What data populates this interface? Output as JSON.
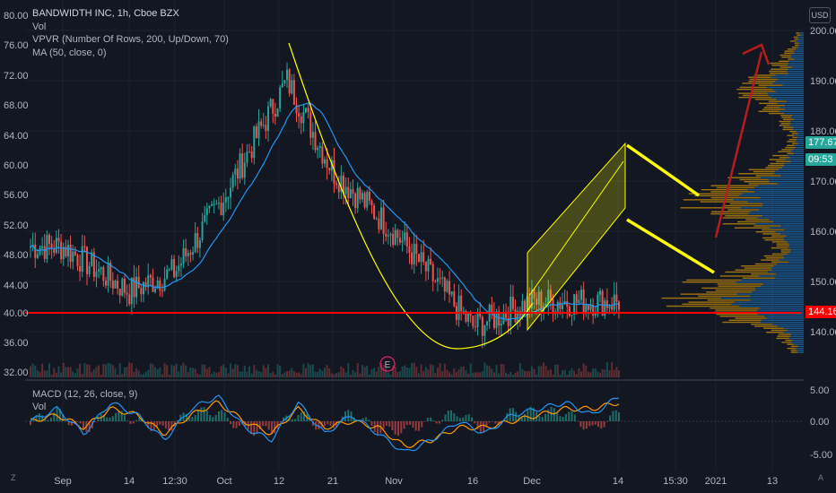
{
  "legend": {
    "title": "BANDWIDTH INC, 1h, Cboe BZX",
    "vol": "Vol",
    "vpvr": "VPVR (Number Of Rows, 200, Up/Down, 70)",
    "ma": "MA (50, close, 0)"
  },
  "macd_legend": {
    "macd": "MACD (12, 26, close, 9)",
    "vol": "Vol"
  },
  "currency_button": "USD",
  "price_tags": {
    "last_price": "177.67",
    "countdown": "09:53",
    "support": "144.16"
  },
  "corner_labels": {
    "left": "Z",
    "right": "A"
  },
  "earnings_marker": "E",
  "colors": {
    "background": "#131722",
    "up": "#26a69a",
    "down": "#ef5350",
    "ma": "#2196f3",
    "support_line": "#ff0000",
    "yellow": "#ffff00",
    "arrow": "#b71c1c",
    "macd_line": "#2196f3",
    "signal_line": "#ff9800"
  },
  "chart_data": [
    {
      "type": "candlestick",
      "panel": "price",
      "title": "BANDWIDTH INC, 1h, Cboe BZX",
      "left_axis_ticks": [
        "80.00",
        "76.00",
        "72.00",
        "68.00",
        "64.00",
        "60.00",
        "56.00",
        "52.00",
        "48.00",
        "44.00",
        "40.00",
        "36.00",
        "32.00"
      ],
      "right_axis_ticks": [
        "200.00",
        "190.00",
        "180.00",
        "170.00",
        "160.00",
        "150.00",
        "140.00"
      ],
      "right_axis_range": [
        133,
        203
      ],
      "x_ticks": [
        "Sep",
        "14",
        "12:30",
        "Oct",
        "12",
        "21",
        "Nov",
        "16",
        "Dec",
        "14",
        "15:30",
        "2021",
        "13"
      ],
      "price_path": {
        "x": [
          "Sep",
          "14",
          "12:30",
          "Oct",
          "12",
          "21",
          "Nov",
          "16",
          "Dec",
          "14"
        ],
        "y": [
          157,
          148,
          152,
          167,
          190,
          172,
          160,
          141,
          146,
          177.67
        ]
      },
      "overlays": {
        "ma_50": "blue line",
        "support_level": 144.16,
        "last_price": 177.67
      }
    },
    {
      "type": "line",
      "panel": "macd",
      "title": "MACD (12, 26, close, 9)",
      "y_ticks": [
        "5.00",
        "0.00",
        "-5.00"
      ],
      "ylim": [
        -6.5,
        6.5
      ],
      "series": [
        {
          "name": "MACD",
          "values": [
            0,
            2,
            -2,
            3,
            1,
            -3,
            2,
            4,
            -1,
            -3,
            3,
            -2,
            1,
            -2,
            -5,
            -3,
            0,
            -2,
            1,
            2,
            3,
            1,
            4
          ]
        },
        {
          "name": "Signal",
          "values": [
            0,
            1,
            -1,
            2,
            1,
            -2,
            1,
            3,
            0,
            -2,
            2,
            -1,
            0,
            -1,
            -4,
            -3,
            -1,
            -1,
            0,
            1,
            2,
            2,
            3
          ]
        }
      ]
    }
  ]
}
